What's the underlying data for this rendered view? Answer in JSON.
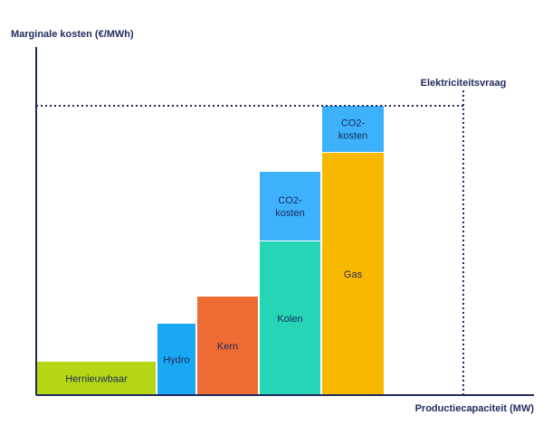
{
  "chart_data": {
    "type": "bar",
    "subtype": "merit-order",
    "ylabel": "Marginale kosten (€/MWh)",
    "xlabel": "Productiecapaciteit (MW)",
    "demand": {
      "label": "Elektriciteitsvraag",
      "x": 472,
      "price": 320,
      "line_style": "dotted"
    },
    "bars": [
      {
        "x_start": 0,
        "x_end": 133,
        "segments": [
          {
            "label": "Hernieuwbaar",
            "value": 37,
            "color": "#b4d615"
          }
        ]
      },
      {
        "x_start": 133,
        "x_end": 177,
        "segments": [
          {
            "label": "Hydro",
            "value": 79,
            "color": "#1aa8f2"
          }
        ]
      },
      {
        "x_start": 177,
        "x_end": 246,
        "segments": [
          {
            "label": "Kern",
            "value": 109,
            "color": "#ef6b34"
          }
        ]
      },
      {
        "x_start": 246,
        "x_end": 315,
        "segments": [
          {
            "label": "Kolen",
            "value": 170,
            "color": "#25d5b6"
          },
          {
            "label": "CO2-\nkosten",
            "value": 77,
            "color": "#3db1fb"
          }
        ]
      },
      {
        "x_start": 315,
        "x_end": 385,
        "segments": [
          {
            "label": "Gas",
            "value": 268,
            "color": "#f9b800"
          },
          {
            "label": "CO2-\nkosten",
            "value": 52,
            "color": "#3db1fb"
          }
        ]
      }
    ],
    "xlim": [
      0,
      550
    ],
    "ylim": [
      0,
      385
    ],
    "grid": false,
    "legend": "none"
  }
}
